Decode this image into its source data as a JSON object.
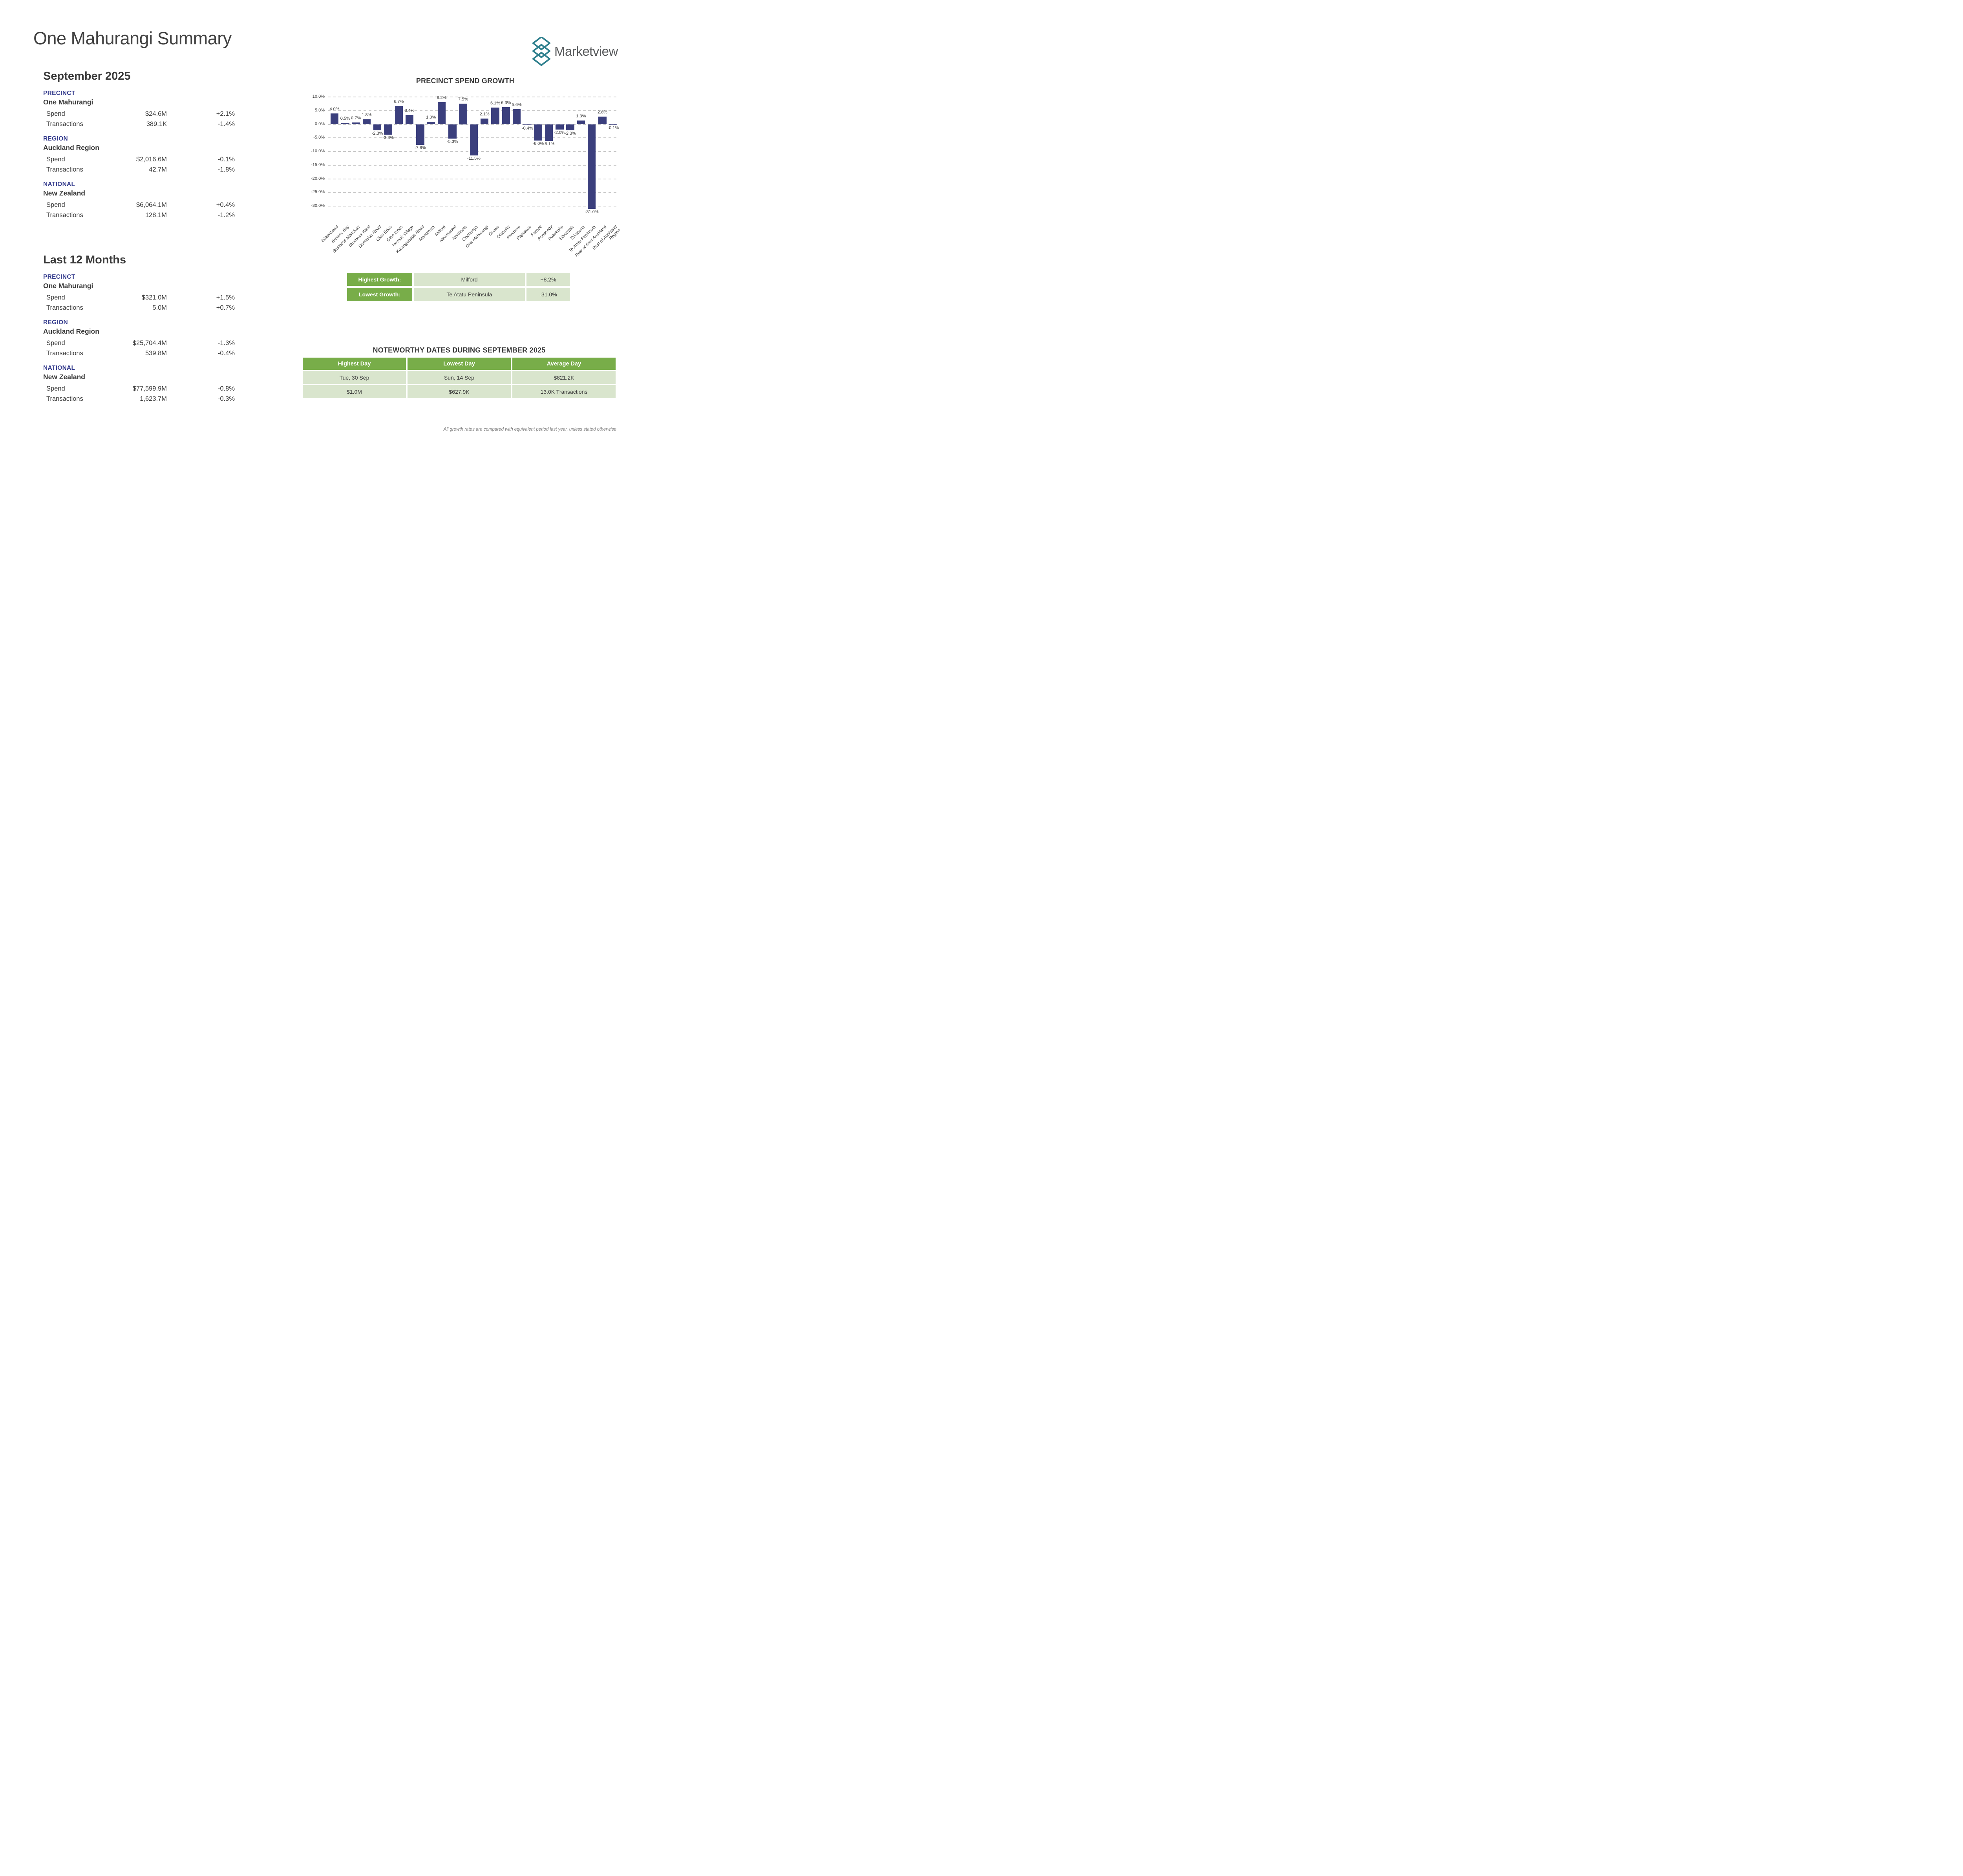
{
  "page": {
    "title": "One Mahurangi Summary",
    "brand": "Marketview",
    "footnote": "All growth rates are compared with equivalent period last year, unless stated otherwise"
  },
  "summary_sections": [
    {
      "heading": "September 2025",
      "groups": [
        {
          "label": "PRECINCT",
          "name": "One Mahurangi",
          "rows": [
            {
              "metric": "Spend",
              "value": "$24.6M",
              "change": "+2.1%"
            },
            {
              "metric": "Transactions",
              "value": "389.1K",
              "change": "-1.4%"
            }
          ]
        },
        {
          "label": "REGION",
          "name": "Auckland Region",
          "rows": [
            {
              "metric": "Spend",
              "value": "$2,016.6M",
              "change": "-0.1%"
            },
            {
              "metric": "Transactions",
              "value": "42.7M",
              "change": "-1.8%"
            }
          ]
        },
        {
          "label": "NATIONAL",
          "name": "New Zealand",
          "rows": [
            {
              "metric": "Spend",
              "value": "$6,064.1M",
              "change": "+0.4%"
            },
            {
              "metric": "Transactions",
              "value": "128.1M",
              "change": "-1.2%"
            }
          ]
        }
      ]
    },
    {
      "heading": "Last 12 Months",
      "groups": [
        {
          "label": "PRECINCT",
          "name": "One Mahurangi",
          "rows": [
            {
              "metric": "Spend",
              "value": "$321.0M",
              "change": "+1.5%"
            },
            {
              "metric": "Transactions",
              "value": "5.0M",
              "change": "+0.7%"
            }
          ]
        },
        {
          "label": "REGION",
          "name": "Auckland Region",
          "rows": [
            {
              "metric": "Spend",
              "value": "$25,704.4M",
              "change": "-1.3%"
            },
            {
              "metric": "Transactions",
              "value": "539.8M",
              "change": "-0.4%"
            }
          ]
        },
        {
          "label": "NATIONAL",
          "name": "New Zealand",
          "rows": [
            {
              "metric": "Spend",
              "value": "$77,599.9M",
              "change": "-0.8%"
            },
            {
              "metric": "Transactions",
              "value": "1,623.7M",
              "change": "-0.3%"
            }
          ]
        }
      ]
    }
  ],
  "chart_data": {
    "type": "bar",
    "title": "PRECINCT SPEND GROWTH",
    "categories": [
      "Birkenhead",
      "Browns Bay",
      "Business Manukau",
      "Business West",
      "Dominion Road",
      "Glen Eden",
      "Glen Innes",
      "Howick Village",
      "Karangahape Road",
      "Manurewa",
      "Milford",
      "Newmarket",
      "Northcote",
      "Onehunga",
      "One Mahurangi",
      "Orewa",
      "Otahuhu",
      "Panmure",
      "Papakura",
      "Parnell",
      "Ponsonby",
      "Pukekohe",
      "Silverdale",
      "Takapuna",
      "Te Atatu Peninsula",
      "Rest of East Auckland",
      "Rest of Auckland Region"
    ],
    "tick_labels": [
      "Birkenhead",
      "Browns Bay",
      "Business Manukau",
      "Business West",
      "Dominion Road",
      "Glen Eden",
      "Glen Innes",
      "Howick Village",
      "Karangahape Road",
      "Manurewa",
      "Milford",
      "Newmarket",
      "Northcote",
      "Onehunga",
      "One Mahurangi",
      "Orewa",
      "Otahuhu",
      "Panmure",
      "Papakura",
      "Parnell",
      "Ponsonby",
      "Pukekohe",
      "Silverdale",
      "Takapuna",
      "Te Atatu Peninsula",
      "Rest of East Auckland",
      "Rest of Auckland\nRegion"
    ],
    "values": [
      4.0,
      0.5,
      0.7,
      1.8,
      -2.3,
      -3.8,
      6.7,
      3.4,
      -7.6,
      1.0,
      8.2,
      -5.3,
      7.5,
      -11.5,
      2.1,
      6.1,
      6.3,
      5.6,
      -0.4,
      -6.0,
      -6.1,
      -2.0,
      -2.3,
      1.3,
      -31.0,
      2.8,
      -0.1
    ],
    "xlabel": "",
    "ylabel": "",
    "yticks": [
      10,
      5,
      0,
      -5,
      -10,
      -15,
      -20,
      -25,
      -30
    ],
    "ylim": [
      -32.5,
      10.5
    ],
    "grid": true,
    "legend": false,
    "value_labels": true
  },
  "growth_table": {
    "rows": [
      {
        "label": "Highest Growth:",
        "name": "Milford",
        "value": "+8.2%"
      },
      {
        "label": "Lowest Growth:",
        "name": "Te Atatu Peninsula",
        "value": "-31.0%"
      }
    ]
  },
  "noteworthy": {
    "title": "NOTEWORTHY DATES DURING SEPTEMBER 2025",
    "headers": [
      "Highest Day",
      "Lowest Day",
      "Average Day"
    ],
    "rows": [
      [
        "Tue, 30 Sep",
        "Sun, 14 Sep",
        "$821.2K"
      ],
      [
        "$1.0M",
        "$627.9K",
        "13.0K Transactions"
      ]
    ]
  },
  "icons": {
    "logo_mark": "marketview-diamonds-icon"
  },
  "colors": {
    "accent_green": "#78AD49",
    "light_green": "#D9E5CD",
    "bar_navy": "#3B3F7D",
    "section_blue": "#333A8C",
    "logo_teal": "#2C7E8C",
    "text_dark": "#3A3A3A",
    "grid_gray": "#C8C8C8",
    "footnote_gray": "#7C7C7C",
    "brand_gray": "#57595B"
  }
}
